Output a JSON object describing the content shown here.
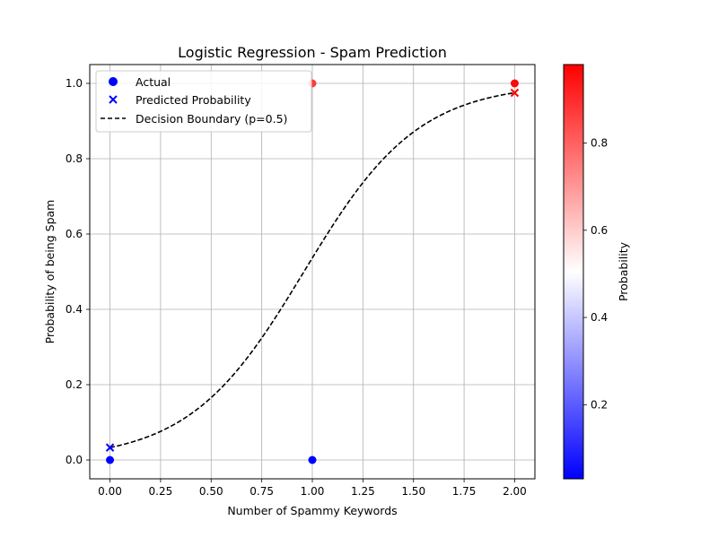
{
  "chart_data": {
    "type": "scatter",
    "title": "Logistic Regression - Spam Prediction",
    "xlabel": "Number of Spammy Keywords",
    "ylabel": "Probability of being Spam",
    "xlim": [
      -0.1,
      2.1
    ],
    "ylim": [
      -0.05,
      1.05
    ],
    "xticks": [
      "0.00",
      "0.25",
      "0.50",
      "0.75",
      "1.00",
      "1.25",
      "1.50",
      "1.75",
      "2.00"
    ],
    "yticks": [
      "0.0",
      "0.2",
      "0.4",
      "0.6",
      "0.8",
      "1.0"
    ],
    "grid": true,
    "legend_position": "top-left",
    "series": [
      {
        "name": "Actual",
        "marker": "circle",
        "points": [
          {
            "x": 0,
            "y": 0,
            "color": "#0000ff"
          },
          {
            "x": 1,
            "y": 0,
            "color": "#0000ff"
          },
          {
            "x": 1,
            "y": 1,
            "color": "#ff3a3a"
          },
          {
            "x": 2,
            "y": 1,
            "color": "#ff0808"
          }
        ]
      },
      {
        "name": "Predicted Probability",
        "marker": "x",
        "points": [
          {
            "x": 0,
            "y": 0.033,
            "color": "#0000ff"
          },
          {
            "x": 2,
            "y": 0.975,
            "color": "#ff0000"
          }
        ]
      },
      {
        "name": "Decision Boundary (p=0.5)",
        "style": "dashed",
        "color": "#000000",
        "logistic": {
          "intercept": -3.38,
          "slope": 3.526
        },
        "x_range": [
          0,
          2
        ]
      }
    ],
    "colorbar": {
      "label": "Probability",
      "range": [
        0.03,
        0.98
      ],
      "ticks": [
        "0.2",
        "0.4",
        "0.6",
        "0.8"
      ],
      "colormap": "bwr"
    }
  }
}
